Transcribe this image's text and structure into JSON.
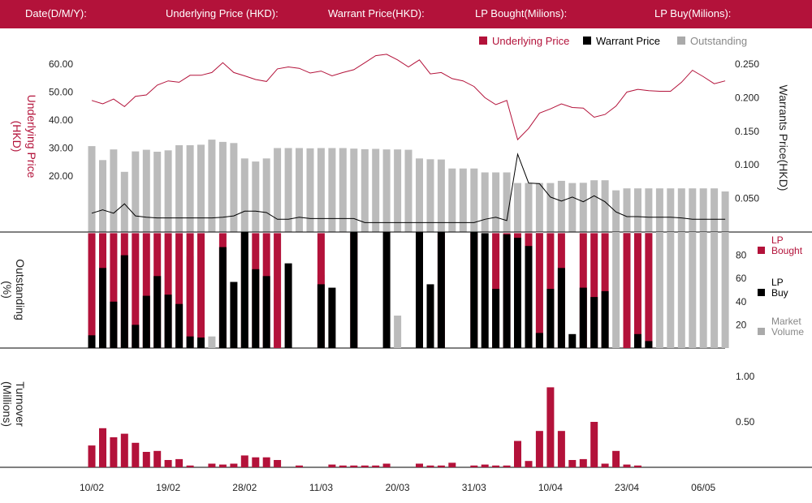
{
  "header": {
    "date_label": "Date(D/M/Y):",
    "underlying_label": "Underlying Price (HKD):",
    "warrant_label": "Warrant  Price(HKD):",
    "lp_bought_label": "LP Bought(Milions):",
    "lp_buy_label": "LP Buy(Milions):"
  },
  "colors": {
    "accent": "#b3123a",
    "black": "#000000",
    "grey": "#bbbbbb"
  },
  "chart_data": {
    "type": "bar",
    "legend_top": [
      "Underlying Price",
      "Warrant  Price",
      "Outstanding"
    ],
    "legend_mid": [
      "LP Bought",
      "LP Buy",
      "Market Volume"
    ],
    "y_left_label": [
      "Underlying Price",
      "(HKD)"
    ],
    "y_right_label": "Warrants  Price(HKD)",
    "y_mid_label": [
      "Outstanding",
      "(%)"
    ],
    "y_bottom_label": [
      "Turnover",
      "(Millions)"
    ],
    "y_left_ticks": [
      "60.00",
      "50.00",
      "40.00",
      "30.00",
      "20.00"
    ],
    "y_right_ticks": [
      "0.250",
      "0.200",
      "0.150",
      "0.100",
      "0.050"
    ],
    "y_mid_ticks": [
      "80",
      "60",
      "40",
      "20"
    ],
    "y_bottom_ticks": [
      "1.00",
      "0.50"
    ],
    "x_tick_labels": [
      "10/02",
      "19/02",
      "28/02",
      "11/03",
      "20/03",
      "31/03",
      "10/04",
      "23/04",
      "06/05"
    ],
    "x_tick_index": [
      0,
      7,
      14,
      21,
      28,
      35,
      42,
      49,
      56
    ],
    "underlying_price": [
      47,
      45.8,
      47.5,
      44.8,
      48.5,
      49,
      52.5,
      54,
      53.5,
      56,
      56,
      57,
      60.5,
      57,
      55.8,
      54.5,
      53.8,
      58.3,
      59,
      58.5,
      56.8,
      57.5,
      55.8,
      57,
      58,
      60.5,
      63,
      63.5,
      61.5,
      59,
      61.5,
      56.5,
      57,
      54.8,
      54,
      52,
      48,
      45.5,
      47,
      33,
      37,
      42.5,
      44,
      45.8,
      44.5,
      44.3,
      41,
      42,
      45,
      50,
      51,
      50.5,
      50.3,
      50.3,
      53.5,
      57.8,
      55.5,
      53,
      54
    ],
    "warrant_price": [
      0.028,
      0.033,
      0.028,
      0.042,
      0.024,
      0.022,
      0.021,
      0.021,
      0.021,
      0.021,
      0.021,
      0.021,
      0.022,
      0.024,
      0.031,
      0.031,
      0.029,
      0.019,
      0.019,
      0.022,
      0.02,
      0.02,
      0.02,
      0.02,
      0.02,
      0.014,
      0.014,
      0.014,
      0.014,
      0.014,
      0.014,
      0.014,
      0.014,
      0.014,
      0.014,
      0.014,
      0.019,
      0.022,
      0.017,
      0.116,
      0.073,
      0.072,
      0.052,
      0.046,
      0.052,
      0.045,
      0.054,
      0.045,
      0.03,
      0.023,
      0.023,
      0.022,
      0.022,
      0.022,
      0.021,
      0.019,
      0.019,
      0.019,
      0.019
    ],
    "outstanding_m": [
      30.7,
      25.7,
      29.5,
      21.5,
      28.8,
      29.4,
      28.7,
      29.2,
      31,
      31,
      31.2,
      33,
      32.2,
      31.8,
      26.3,
      25.2,
      26.3,
      30,
      30,
      30,
      29.9,
      30,
      30,
      30,
      29.8,
      29.6,
      29.7,
      29.5,
      29.5,
      29.4,
      26.3,
      26,
      25.9,
      22.7,
      22.7,
      22.7,
      21.3,
      21.3,
      21.3,
      17.5,
      17.5,
      17.5,
      17.5,
      18.3,
      17.5,
      17.6,
      18.5,
      18.5,
      14.9,
      15.6,
      15.6,
      15.6,
      15.6,
      15.6,
      15.6,
      15.6,
      15.6,
      15.6,
      14.5
    ],
    "lp_bought_pct": [
      99,
      99,
      99,
      99,
      99,
      99,
      99,
      99,
      99,
      99,
      99,
      0,
      99,
      0,
      99,
      99,
      99,
      99,
      0,
      0,
      0,
      99,
      0,
      0,
      99,
      0,
      0,
      0,
      0,
      0,
      99,
      0,
      99,
      0,
      0,
      99,
      0,
      99,
      99,
      99,
      99,
      99,
      99,
      99,
      0,
      99,
      99,
      99,
      0,
      99,
      99,
      99,
      0,
      0,
      0,
      0,
      0,
      0,
      0
    ],
    "lp_buy_pct": [
      11,
      69,
      40,
      80,
      20,
      45,
      62,
      46,
      38,
      10,
      9,
      0,
      87,
      57,
      100,
      68,
      62,
      0,
      73,
      0,
      0,
      55,
      52,
      0,
      100,
      0,
      0,
      100,
      0,
      0,
      100,
      55,
      100,
      0,
      0,
      100,
      99,
      51,
      98,
      95,
      88,
      13,
      51,
      69,
      12,
      52,
      44,
      49,
      0,
      0,
      12,
      6,
      0,
      0,
      0,
      0,
      0,
      0,
      0
    ],
    "market_volume_pct": [
      0,
      2,
      0,
      0,
      4,
      15,
      5,
      7,
      10,
      79,
      0,
      10,
      9,
      0,
      0,
      2,
      0,
      48,
      0,
      0,
      0,
      63,
      0,
      0,
      100,
      0,
      0,
      0,
      28,
      0,
      0,
      0,
      0,
      0,
      0,
      0,
      0,
      0,
      0,
      46,
      0,
      100,
      0,
      0,
      0,
      0,
      0,
      0,
      100,
      100,
      100,
      100,
      100,
      100,
      100,
      100,
      100,
      100,
      100
    ],
    "turnover_m": [
      0.24,
      0.43,
      0.33,
      0.37,
      0.27,
      0.17,
      0.18,
      0.08,
      0.09,
      0.02,
      0,
      0.04,
      0.03,
      0.04,
      0.13,
      0.11,
      0.11,
      0.08,
      0,
      0.02,
      0,
      0,
      0.03,
      0.02,
      0.02,
      0.02,
      0.02,
      0.04,
      0,
      0,
      0.04,
      0.02,
      0.02,
      0.05,
      0,
      0.02,
      0.03,
      0.02,
      0.02,
      0.29,
      0.07,
      0.4,
      0.88,
      0.4,
      0.08,
      0.09,
      0.5,
      0.04,
      0.18,
      0.03,
      0.02,
      0,
      0,
      0,
      0,
      0,
      0,
      0,
      0
    ],
    "ranges": {
      "underlying": [
        0,
        65
      ],
      "warrant": [
        0,
        0.25
      ],
      "outstanding": [
        0,
        100
      ],
      "turnover": [
        0,
        1.0
      ]
    }
  }
}
